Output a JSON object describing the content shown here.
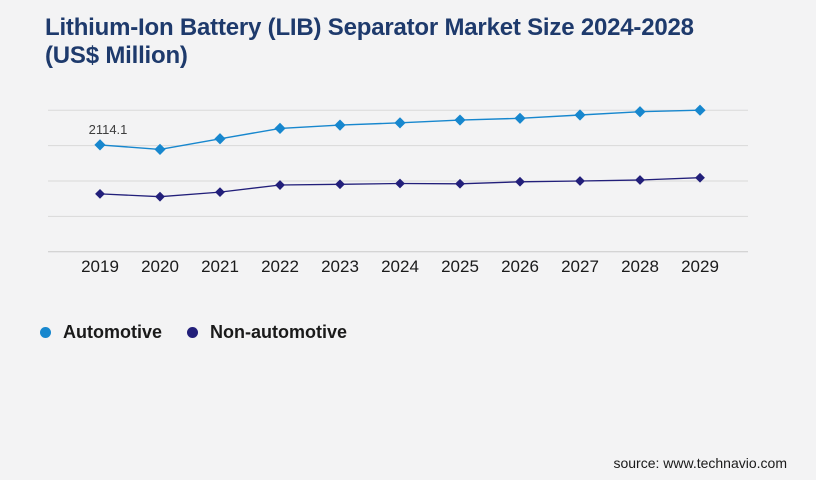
{
  "page": {
    "background": "#f3f3f4"
  },
  "header": {
    "title": "Lithium-Ion Battery (LIB) Separator Market Size 2024-2028 (US$ Million)",
    "title_line1": "Lithium-Ion Battery (LIB) Separator Market Size 2024-2028",
    "title_line2": "(US$ Million)",
    "color": "#1e3a6c"
  },
  "chart_data": {
    "type": "line",
    "title": "Lithium-Ion Battery (LIB) Separator Market Size 2024-2028 (US$ Million)",
    "categories": [
      "2019",
      "2020",
      "2021",
      "2022",
      "2023",
      "2024",
      "2025",
      "2026",
      "2027",
      "2028",
      "2029"
    ],
    "series": [
      {
        "name": "Automotive",
        "color": "#1787ce",
        "marker": "diamond",
        "values": [
          2114.1,
          2025,
          2235,
          2440,
          2505,
          2550,
          2605,
          2640,
          2705,
          2770,
          2800
        ]
      },
      {
        "name": "Non-automotive",
        "color": "#221f7a",
        "marker": "diamond",
        "values": [
          1145,
          1090,
          1180,
          1320,
          1335,
          1350,
          1345,
          1385,
          1400,
          1420,
          1465
        ]
      }
    ],
    "annotation": {
      "series": 0,
      "index": 0,
      "text": "2114.1"
    },
    "xlabel": "",
    "ylabel": "",
    "ylim": [
      0,
      2800
    ],
    "gridline_count": 5,
    "grid_on": true,
    "grid_color": "#d9d9d9",
    "axis_color": "#c9c9c9",
    "tick_label_color": "#1b1b1b",
    "annotation_color": "#3d3d3d",
    "y_axis_labels_visible": false,
    "legend_position": "bottom-left"
  },
  "footer": {
    "source": "source: www.technavio.com"
  }
}
